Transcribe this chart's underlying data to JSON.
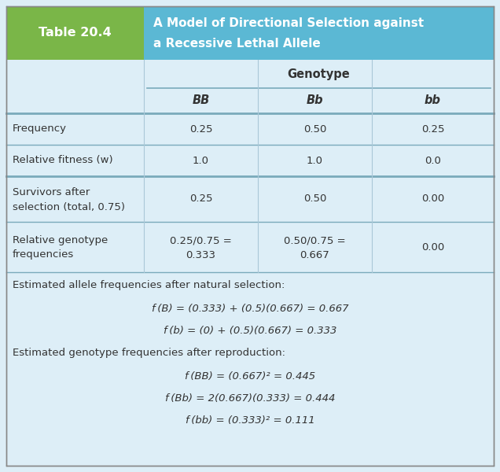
{
  "title_label": "Table 20.4",
  "title_text": "A Model of Directional Selection against\na Recessive Lethal Allele",
  "header_bg_label": "#7ab648",
  "header_bg_title": "#5bb8d4",
  "table_bg": "#ddeef7",
  "white_bg": "#ddeef7",
  "genotype_header": "Genotype",
  "col_headers": [
    "BB",
    "Bb",
    "bb"
  ],
  "rows": [
    {
      "label": "Frequency",
      "values": [
        "0.25",
        "0.50",
        "0.25"
      ],
      "two_line": false
    },
    {
      "label": "Relative fitness (w)",
      "values": [
        "1.0",
        "1.0",
        "0.0"
      ],
      "two_line": false
    },
    {
      "label": "Survivors after\nselection (total, 0.75)",
      "values": [
        "0.25",
        "0.50",
        "0.00"
      ],
      "two_line": true
    },
    {
      "label": "Relative genotype\nfrequencies",
      "values": [
        "0.25/0.75 =\n0.333",
        "0.50/0.75 =\n0.667",
        "0.00"
      ],
      "two_line": true
    }
  ],
  "footer_lines": [
    {
      "type": "header",
      "text": "Estimated allele frequencies after natural selection:"
    },
    {
      "type": "eq",
      "text": "f (B) = (0.333) + (0.5)(0.667) = 0.667"
    },
    {
      "type": "eq",
      "text": "f (b) = (0) + (0.5)(0.667) = 0.333"
    },
    {
      "type": "header",
      "text": "Estimated genotype frequencies after reproduction:"
    },
    {
      "type": "eq",
      "text": "f (BB) = (0.667)² = 0.445"
    },
    {
      "type": "eq",
      "text": "f (Bb) = 2(0.667)(0.333) = 0.444"
    },
    {
      "type": "eq",
      "text": "f (bb) = (0.333)² = 0.111"
    }
  ],
  "text_color": "#333333",
  "line_color": "#aac8d8",
  "dark_line_color": "#7aaabb"
}
